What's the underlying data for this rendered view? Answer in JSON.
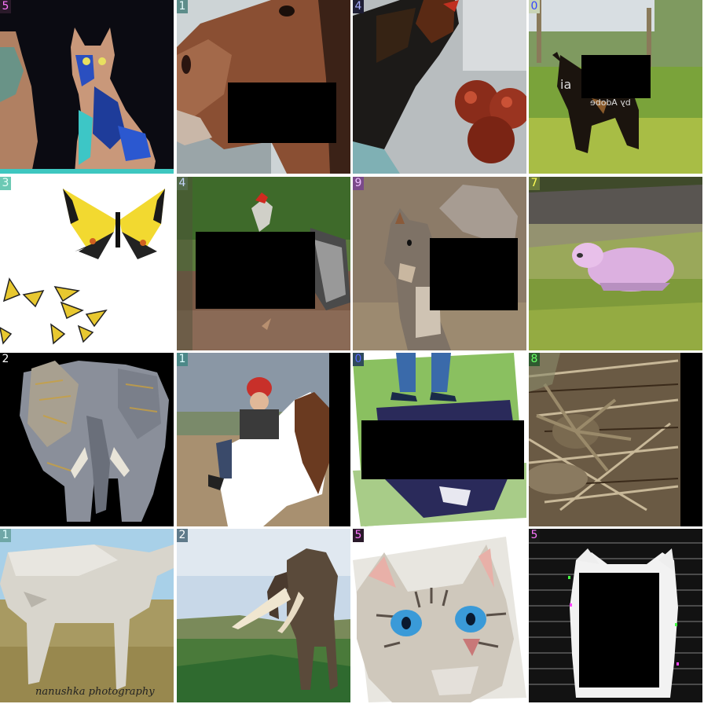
{
  "grid": {
    "tiles": [
      {
        "label": "5",
        "subject": "cat-icon",
        "label_bg": "#2a1a2a",
        "label_fg": "#ff77ff"
      },
      {
        "label": "1",
        "subject": "horse-icon",
        "label_bg": "#5d8d8a",
        "label_fg": "#e8ffff"
      },
      {
        "label": "4",
        "subject": "chicken-icon",
        "label_bg": "#1e1e34",
        "label_fg": "#aab0ff"
      },
      {
        "label": "0",
        "subject": "dog-icon",
        "label_bg": "#c9d4b7",
        "label_fg": "#3344ff"
      },
      {
        "label": "3",
        "subject": "butterfly-icon",
        "label_bg": "#6cc9b4",
        "label_fg": "#e7fff7"
      },
      {
        "label": "4",
        "subject": "chicken-icon",
        "label_bg": "#536a4a",
        "label_fg": "#c7d7ff"
      },
      {
        "label": "9",
        "subject": "squirrel-icon",
        "label_bg": "#7a4a8a",
        "label_fg": "#f0c0ff"
      },
      {
        "label": "7",
        "subject": "sheep-icon",
        "label_bg": "#6a7a3a",
        "label_fg": "#ffff55"
      },
      {
        "label": "2",
        "subject": "elephant-icon",
        "label_bg": "#000000",
        "label_fg": "#ffffff"
      },
      {
        "label": "1",
        "subject": "horse-icon",
        "label_bg": "#4c8888",
        "label_fg": "#dfffff"
      },
      {
        "label": "0",
        "subject": "dog-icon",
        "label_bg": "#2f4a5a",
        "label_fg": "#5566ff"
      },
      {
        "label": "8",
        "subject": "spider-icon",
        "label_bg": "#2f5a2f",
        "label_fg": "#66ff66"
      },
      {
        "label": "1",
        "subject": "horse-icon",
        "label_bg": "#6fa7a7",
        "label_fg": "#dfffff"
      },
      {
        "label": "2",
        "subject": "elephant-icon",
        "label_bg": "#5f7a8a",
        "label_fg": "#ffffff"
      },
      {
        "label": "5",
        "subject": "cat-icon",
        "label_bg": "#2a1a2a",
        "label_fg": "#ff77ff"
      },
      {
        "label": "5",
        "subject": "cat-icon",
        "label_bg": "#1a1a1a",
        "label_fg": "#ff77ff"
      }
    ],
    "watermarks": {
      "adobe": "by Adobe",
      "adobe_partial": "ia",
      "photo_credit": "nanushka photography"
    }
  }
}
